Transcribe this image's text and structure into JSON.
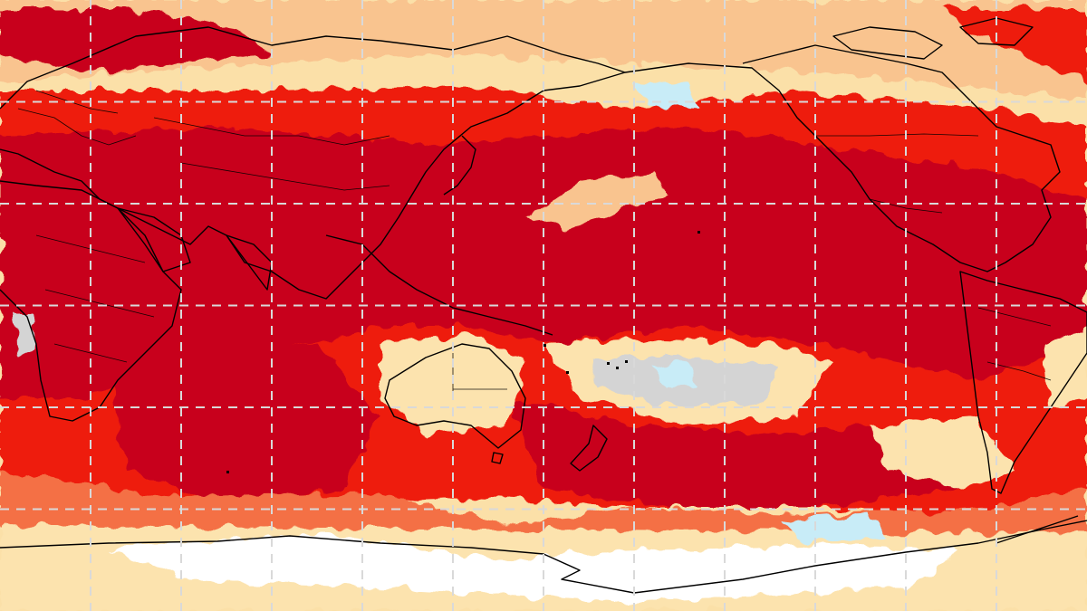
{
  "map": {
    "projection": "equirectangular",
    "central_longitude": 180,
    "lon_extent": [
      0,
      360
    ],
    "lat_extent": [
      -90,
      90
    ],
    "graticule": {
      "lon_lines": [
        30,
        60,
        90,
        120,
        150,
        180,
        210,
        240,
        270,
        300,
        330
      ],
      "lat_lines": [
        60,
        30,
        0,
        -30,
        -60
      ],
      "style": "dashed",
      "color": "#d9d9d9"
    },
    "coastline_color": "#000000",
    "show_country_borders": true
  },
  "color_categories": [
    {
      "id": "much-warmer",
      "color": "#c8001e"
    },
    {
      "id": "warmer",
      "color": "#ee1c10"
    },
    {
      "id": "warm",
      "color": "#f46f45"
    },
    {
      "id": "slightly-warm",
      "color": "#f9c48f"
    },
    {
      "id": "near-average-warm",
      "color": "#fce3ae"
    },
    {
      "id": "near-average",
      "color": "#ffffff"
    },
    {
      "id": "near-average-grey",
      "color": "#d4d4d4"
    },
    {
      "id": "cool",
      "color": "#c8ecf7"
    }
  ]
}
